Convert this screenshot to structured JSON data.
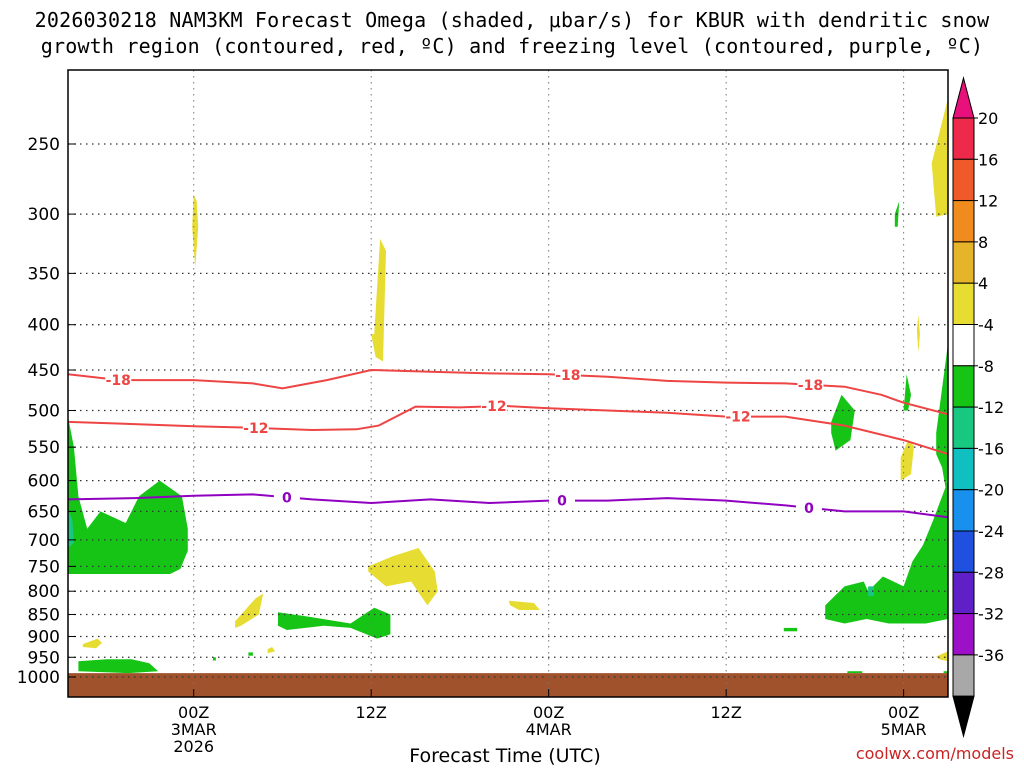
{
  "header": {
    "title_line1": "2026030218 NAM3KM Forecast Omega (shaded, μbar/s) for KBUR with dendritic snow",
    "title_line2": "growth region (contoured, red, ºC) and freezing level (contoured, purple, ºC)"
  },
  "footer": {
    "credit": "coolwx.com/models",
    "x_title": "Forecast Time (UTC)"
  },
  "chart_data": {
    "type": "heatmap",
    "title": "2026030218 NAM3KM Forecast Omega (shaded, μbar/s) for KBUR with dendritic snow growth region (contoured, red, ºC) and freezing level (contoured, purple, ºC)",
    "xlabel": "Forecast Time (UTC)",
    "ylabel": "",
    "y_scale": "log-pressure (inverted)",
    "ylim": [
      1000,
      200
    ],
    "xlim_hours": [
      -2.5,
      57
    ],
    "grid": true,
    "y_ticks": [
      250,
      300,
      350,
      400,
      450,
      500,
      550,
      600,
      650,
      700,
      750,
      800,
      850,
      900,
      950,
      1000
    ],
    "x_ticks": [
      {
        "hour": 6,
        "label": "00Z\n3MAR\n2026"
      },
      {
        "hour": 18,
        "label": "12Z"
      },
      {
        "hour": 30,
        "label": "00Z\n4MAR"
      },
      {
        "hour": 42,
        "label": "12Z"
      },
      {
        "hour": 54,
        "label": "00Z\n5MAR"
      }
    ],
    "colorbar": {
      "labels": [
        "20",
        "16",
        "12",
        "8",
        "4",
        "-4",
        "-8",
        "-12",
        "-16",
        "-20",
        "-24",
        "-28",
        "-32",
        "-36"
      ],
      "colors": [
        "#ee2a4a",
        "#f05a2a",
        "#f08c1e",
        "#e6b428",
        "#e6dc32",
        "#ffffff",
        "#16c416",
        "#18c880",
        "#10c0c0",
        "#1890ee",
        "#2050e0",
        "#6020c8",
        "#9c10c8",
        "#a8a8a8"
      ],
      "cap_top": "#e8107a",
      "cap_bottom": "#000000"
    },
    "series": [
      {
        "name": "-18",
        "color": "#ee4444",
        "x": [
          -2.5,
          1,
          6,
          10,
          12,
          15,
          18,
          22,
          26,
          30,
          34,
          38,
          42,
          46,
          50,
          52.5,
          54,
          57
        ],
        "y": [
          455,
          462,
          462,
          466,
          472,
          462,
          450,
          452,
          454,
          455,
          458,
          463,
          465,
          466,
          470,
          480,
          490,
          505
        ]
      },
      {
        "name": "-12",
        "color": "#ee4444",
        "x": [
          -2.5,
          2,
          6,
          10,
          14,
          17,
          18.5,
          21,
          24,
          27,
          30,
          34,
          38,
          42,
          46,
          50,
          52,
          54,
          57
        ],
        "y": [
          515,
          518,
          521,
          523,
          526,
          525,
          520,
          495,
          496,
          494,
          497,
          500,
          503,
          508,
          508,
          520,
          530,
          540,
          560
        ]
      },
      {
        "name": "0",
        "color": "#9000c0",
        "x": [
          -2.5,
          2,
          6,
          10,
          14,
          18,
          22,
          26,
          30,
          34,
          38,
          42,
          46,
          50,
          54,
          57
        ],
        "y": [
          630,
          628,
          624,
          622,
          630,
          636,
          630,
          636,
          632,
          632,
          628,
          632,
          640,
          650,
          650,
          660
        ]
      }
    ],
    "series_labels": [
      {
        "series": "-18",
        "text": "-18",
        "x": [
          0.9,
          31.3,
          47.7
        ]
      },
      {
        "series": "-12",
        "text": "-12",
        "x": [
          10.2,
          26.3,
          42.8
        ]
      },
      {
        "series": "0",
        "text": "0",
        "x": [
          12.3,
          30.9,
          47.6
        ]
      }
    ],
    "shaded_regions": [
      {
        "category": "4",
        "color": "#e6dc32",
        "polys": [
          {
            "x": [
              6.0,
              6.2,
              6.3,
              6.1,
              5.9
            ],
            "y": [
              285,
              290,
              310,
              345,
              310
            ]
          },
          {
            "x": [
              18.2,
              18.6,
              19.0,
              18.8,
              18.3,
              18.0
            ],
            "y": [
              410,
              320,
              330,
              440,
              435,
              410
            ]
          },
          {
            "x": [
              17.8,
              19.5,
              21.2,
              22.3,
              22.5,
              21.8,
              20.7,
              19.0,
              17.8
            ],
            "y": [
              750,
              730,
              715,
              760,
              800,
              830,
              780,
              790,
              760
            ]
          },
          {
            "x": [
              8.8,
              9.9,
              10.2,
              10.7,
              10.4,
              9.2,
              8.8
            ],
            "y": [
              865,
              825,
              815,
              805,
              850,
              875,
              880
            ]
          },
          {
            "x": [
              -1.5,
              -0.5,
              -0.2,
              -0.6,
              -1.5
            ],
            "y": [
              918,
              905,
              915,
              928,
              925
            ]
          },
          {
            "x": [
              27.3,
              29.0,
              29.4,
              28.0,
              27.4
            ],
            "y": [
              820,
              825,
              840,
              840,
              830
            ]
          },
          {
            "x": [
              11.0,
              11.3,
              11.5,
              11.0
            ],
            "y": [
              930,
              925,
              935,
              940
            ]
          },
          {
            "x": [
              55.9,
              57.0,
              57.0,
              56.2
            ],
            "y": [
              263,
              222,
              300,
              302
            ]
          },
          {
            "x": [
              53.8,
              54.3,
              54.7,
              54.5,
              53.8
            ],
            "y": [
              565,
              540,
              548,
              590,
              600
            ]
          },
          {
            "x": [
              54.9,
              55.0,
              55.1,
              55.0
            ],
            "y": [
              405,
              390,
              410,
              430
            ]
          },
          {
            "x": [
              56.2,
              57.0,
              57.0,
              56.4
            ],
            "y": [
              948,
              935,
              960,
              955
            ]
          }
        ]
      },
      {
        "category": "-4",
        "color": "#16c416",
        "polys": [
          {
            "x": [
              -2.5,
              -2.1,
              -1.8,
              -1.2,
              -0.3,
              1.4,
              2.3,
              3.7,
              5.2,
              5.6,
              5.6,
              5.1,
              4.4,
              -2.5
            ],
            "y": [
              508,
              550,
              625,
              680,
              650,
              670,
              625,
              600,
              625,
              680,
              720,
              755,
              765,
              765
            ]
          },
          {
            "x": [
              -1.8,
              0.1,
              1.8,
              3.0,
              3.6,
              1.6,
              -1.8
            ],
            "y": [
              960,
              955,
              955,
              965,
              985,
              990,
              985
            ]
          },
          {
            "x": [
              11.7,
              13.8,
              16.6,
              18.2,
              19.3,
              19.3,
              18.4,
              16.6,
              14.8,
              12.3,
              11.7
            ],
            "y": [
              845,
              855,
              870,
              835,
              850,
              895,
              905,
              880,
              875,
              885,
              875
            ]
          },
          {
            "x": [
              48.7,
              50.0,
              51.3,
              51.6,
              52.6,
              54.0,
              54.6,
              55.3,
              56.0,
              57.0,
              57.0,
              55.5,
              53.0,
              51.5,
              50.0,
              48.7
            ],
            "y": [
              830,
              790,
              780,
              800,
              770,
              790,
              740,
              710,
              665,
              600,
              860,
              870,
              870,
              860,
              870,
              860
            ]
          },
          {
            "x": [
              49.1,
              49.8,
              50.7,
              50.4,
              49.4,
              49.1
            ],
            "y": [
              515,
              480,
              500,
              540,
              555,
              530
            ]
          },
          {
            "x": [
              54.0,
              54.2,
              54.5,
              54.3
            ],
            "y": [
              500,
              455,
              480,
              500
            ]
          },
          {
            "x": [
              56.2,
              57.0,
              57.0,
              56.9,
              56.6,
              56.2
            ],
            "y": [
              530,
              420,
              550,
              620,
              580,
              560
            ]
          },
          {
            "x": [
              55.6,
              56.3,
              57.0,
              57.0,
              56.8,
              56.0
            ],
            "y": [
              730,
              670,
              660,
              780,
              800,
              820
            ]
          },
          {
            "x": [
              53.4,
              53.7,
              53.6,
              53.4
            ],
            "y": [
              300,
              290,
              310,
              310
            ]
          },
          {
            "x": [
              45.9,
              46.8,
              46.8,
              45.9
            ],
            "y": [
              880,
              880,
              888,
              888
            ]
          },
          {
            "x": [
              7.3,
              7.5,
              7.5,
              7.3
            ],
            "y": [
              950,
              950,
              958,
              958
            ]
          },
          {
            "x": [
              9.7,
              10.0,
              10.0,
              9.7
            ],
            "y": [
              938,
              938,
              946,
              946
            ]
          },
          {
            "x": [
              50.2,
              51.2,
              51.2,
              50.2
            ],
            "y": [
              985,
              985,
              990,
              990
            ]
          },
          {
            "x": [
              56.7,
              57.0,
              57.0,
              56.7
            ],
            "y": [
              985,
              985,
              990,
              990
            ]
          }
        ]
      },
      {
        "category": "-8",
        "color": "#18c880",
        "polys": [
          {
            "x": [
              -2.5,
              -2.2,
              -2.1,
              -2.5
            ],
            "y": [
              645,
              665,
              705,
              715
            ]
          },
          {
            "x": [
              51.6,
              52.0,
              52.0,
              51.6
            ],
            "y": [
              790,
              790,
              810,
              810
            ]
          }
        ]
      }
    ],
    "surface": {
      "label": "ground",
      "color": "#a0522d",
      "y_top": 990
    }
  }
}
